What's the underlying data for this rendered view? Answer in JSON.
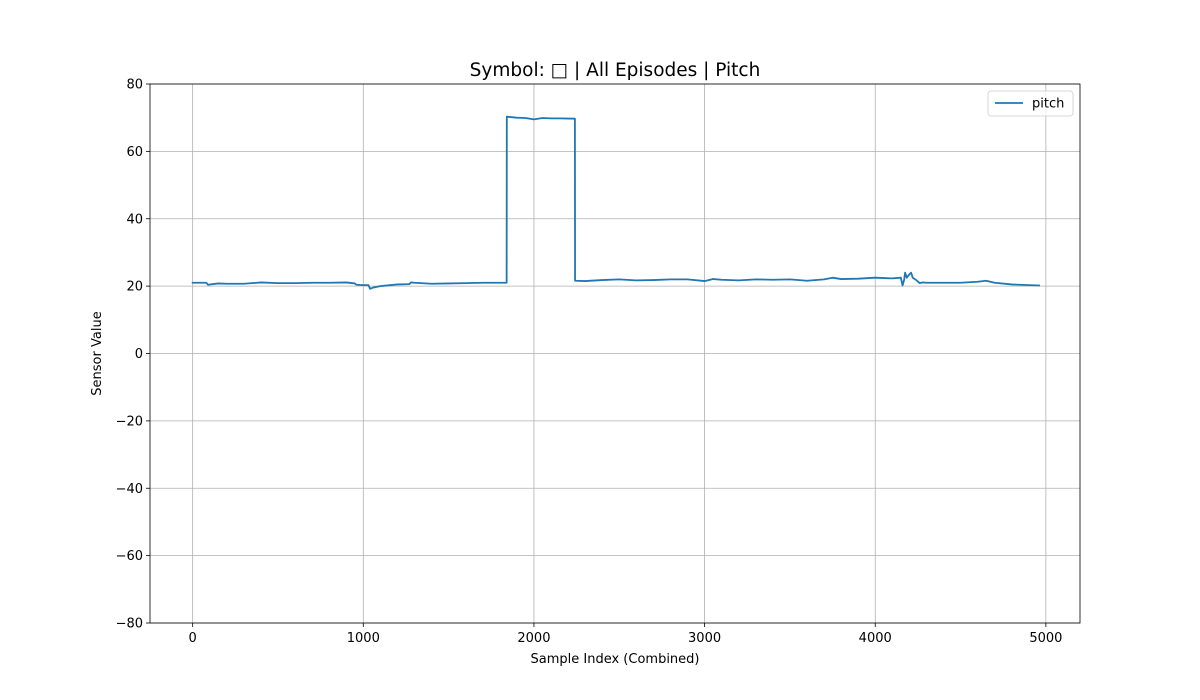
{
  "chart_data": {
    "type": "line",
    "title": "Symbol: □ | All Episodes | Pitch",
    "xlabel": "Sample Index (Combined)",
    "ylabel": "Sensor Value",
    "xlim": [
      -250,
      5200
    ],
    "ylim": [
      -80,
      80
    ],
    "xticks": [
      0,
      1000,
      2000,
      3000,
      4000,
      5000
    ],
    "yticks": [
      -80,
      -60,
      -40,
      -20,
      0,
      20,
      40,
      60,
      80
    ],
    "xtick_labels": [
      "0",
      "1000",
      "2000",
      "3000",
      "4000",
      "5000"
    ],
    "ytick_labels": [
      "−80",
      "−60",
      "−40",
      "−20",
      "0",
      "20",
      "40",
      "60",
      "80"
    ],
    "grid": true,
    "legend_position": "upper-right",
    "colors": {
      "pitch": "#1f77b4"
    },
    "series": [
      {
        "name": "pitch",
        "x": [
          0,
          80,
          90,
          150,
          200,
          300,
          400,
          500,
          600,
          700,
          800,
          900,
          950,
          960,
          1000,
          1030,
          1040,
          1060,
          1100,
          1200,
          1270,
          1280,
          1300,
          1400,
          1500,
          1600,
          1700,
          1800,
          1840,
          1841,
          1900,
          1950,
          2000,
          2050,
          2100,
          2150,
          2240,
          2241,
          2300,
          2400,
          2500,
          2600,
          2700,
          2800,
          2900,
          3000,
          3050,
          3100,
          3200,
          3300,
          3400,
          3500,
          3600,
          3700,
          3750,
          3800,
          3900,
          4000,
          4100,
          4150,
          4160,
          4170,
          4175,
          4185,
          4200,
          4210,
          4220,
          4240,
          4260,
          4280,
          4300,
          4400,
          4500,
          4600,
          4650,
          4700,
          4800,
          4900,
          4960
        ],
        "y": [
          21.0,
          21.0,
          20.4,
          20.8,
          20.7,
          20.7,
          21.1,
          20.9,
          20.9,
          21.0,
          21.0,
          21.1,
          20.8,
          20.4,
          20.3,
          20.3,
          19.2,
          19.6,
          20.0,
          20.5,
          20.6,
          21.1,
          21.0,
          20.7,
          20.8,
          20.9,
          21.0,
          21.0,
          21.0,
          70.3,
          70.0,
          69.9,
          69.5,
          69.9,
          69.8,
          69.8,
          69.7,
          21.6,
          21.5,
          21.8,
          22.0,
          21.7,
          21.8,
          22.0,
          22.0,
          21.5,
          22.1,
          21.9,
          21.7,
          22.0,
          21.9,
          22.0,
          21.6,
          22.0,
          22.5,
          22.1,
          22.2,
          22.5,
          22.3,
          22.5,
          20.2,
          22.0,
          24.0,
          22.5,
          23.5,
          24.0,
          22.5,
          21.8,
          20.9,
          21.1,
          21.0,
          21.0,
          21.0,
          21.3,
          21.6,
          21.0,
          20.5,
          20.3,
          20.2
        ]
      }
    ]
  }
}
